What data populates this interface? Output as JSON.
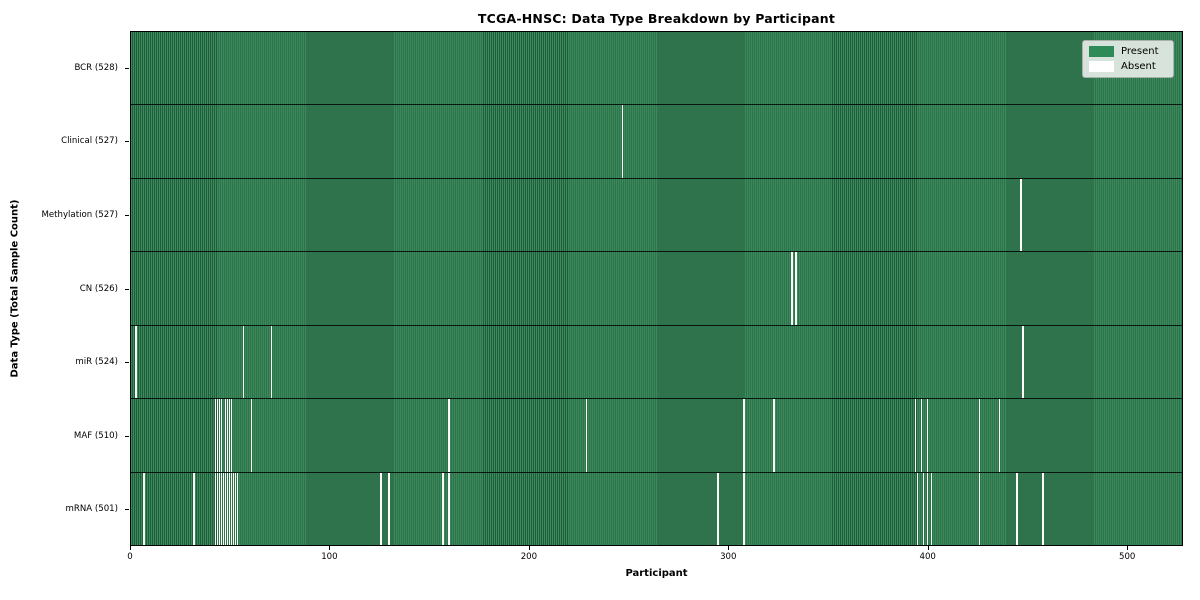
{
  "figure": {
    "title": "TCGA-HNSC: Data Type Breakdown by Participant",
    "xlabel": "Participant",
    "ylabel": "Data Type (Total Sample Count)"
  },
  "legend": {
    "items": [
      {
        "name": "present",
        "label": "Present",
        "color": "#2e8b57"
      },
      {
        "name": "absent",
        "label": "Absent",
        "color": "#ffffff"
      }
    ]
  },
  "chart_data": {
    "type": "heatmap",
    "title": "TCGA-HNSC: Data Type Breakdown by Participant",
    "xlabel": "Participant",
    "ylabel": "Data Type (Total Sample Count)",
    "legend_entries": [
      "Present",
      "Absent"
    ],
    "legend_position": "upper right",
    "grid": false,
    "n_participants": 528,
    "x_ticks": [
      0,
      100,
      200,
      300,
      400,
      500
    ],
    "x_tick_labels": [
      "0",
      "100",
      "200",
      "300",
      "400",
      "500"
    ],
    "xlim": [
      0,
      528
    ],
    "colors": {
      "present": "#2e8b57",
      "present_stripe_dark": "#215c3c",
      "absent": "#fbfbf8"
    },
    "rows": [
      {
        "label": "BCR",
        "total": 528,
        "display": "BCR (528)",
        "absent_participants": []
      },
      {
        "label": "Clinical",
        "total": 527,
        "display": "Clinical (527)",
        "absent_participants": [
          246
        ]
      },
      {
        "label": "Methylation",
        "total": 527,
        "display": "Methylation (527)",
        "absent_participants": [
          446
        ]
      },
      {
        "label": "CN",
        "total": 526,
        "display": "CN (526)",
        "absent_participants": [
          331,
          333
        ]
      },
      {
        "label": "miR",
        "total": 524,
        "display": "miR (524)",
        "absent_participants": [
          2,
          56,
          70,
          447
        ]
      },
      {
        "label": "MAF",
        "total": 510,
        "display": "MAF (510)",
        "absent_participants": [
          42,
          43,
          44,
          45,
          47,
          48,
          49,
          50,
          60,
          159,
          228,
          307,
          322,
          393,
          396,
          399,
          425,
          435
        ]
      },
      {
        "label": "mRNA",
        "total": 501,
        "display": "mRNA (501)",
        "absent_participants": [
          6,
          31,
          42,
          43,
          44,
          45,
          46,
          47,
          48,
          49,
          50,
          51,
          52,
          53,
          125,
          129,
          156,
          159,
          294,
          307,
          394,
          397,
          399,
          401,
          425,
          444,
          457
        ]
      }
    ]
  }
}
